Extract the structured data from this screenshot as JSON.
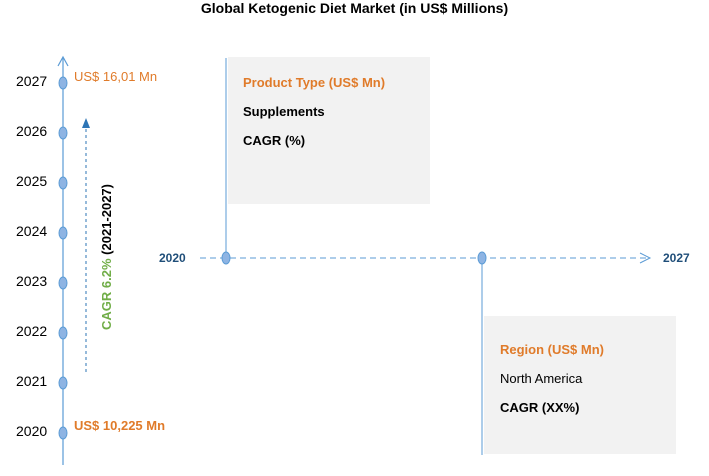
{
  "title": "Global Ketogenic Diet Market (in US$ Millions)",
  "timeline": {
    "years": [
      "2027",
      "2026",
      "2025",
      "2024",
      "2023",
      "2022",
      "2021",
      "2020"
    ],
    "top_value": "US$ 16,01 Mn",
    "bottom_value": "US$ 10,225 Mn",
    "cagr_label": "CAGR 6.2%",
    "cagr_period": "(2021-2027)"
  },
  "horizontal": {
    "start_year": "2020",
    "end_year": "2027"
  },
  "product_box": {
    "heading": "Product Type (US$ Mn)",
    "line1": "Supplements",
    "line2": "CAGR (%)"
  },
  "region_box": {
    "heading": "Region (US$ Mn)",
    "line1": "North America",
    "line2": "CAGR (XX%)"
  },
  "colors": {
    "accent_orange": "#e07b2a",
    "cagr_green": "#70ad47",
    "line_blue": "#5b9bd5",
    "box_gray": "#f2f2f2"
  }
}
